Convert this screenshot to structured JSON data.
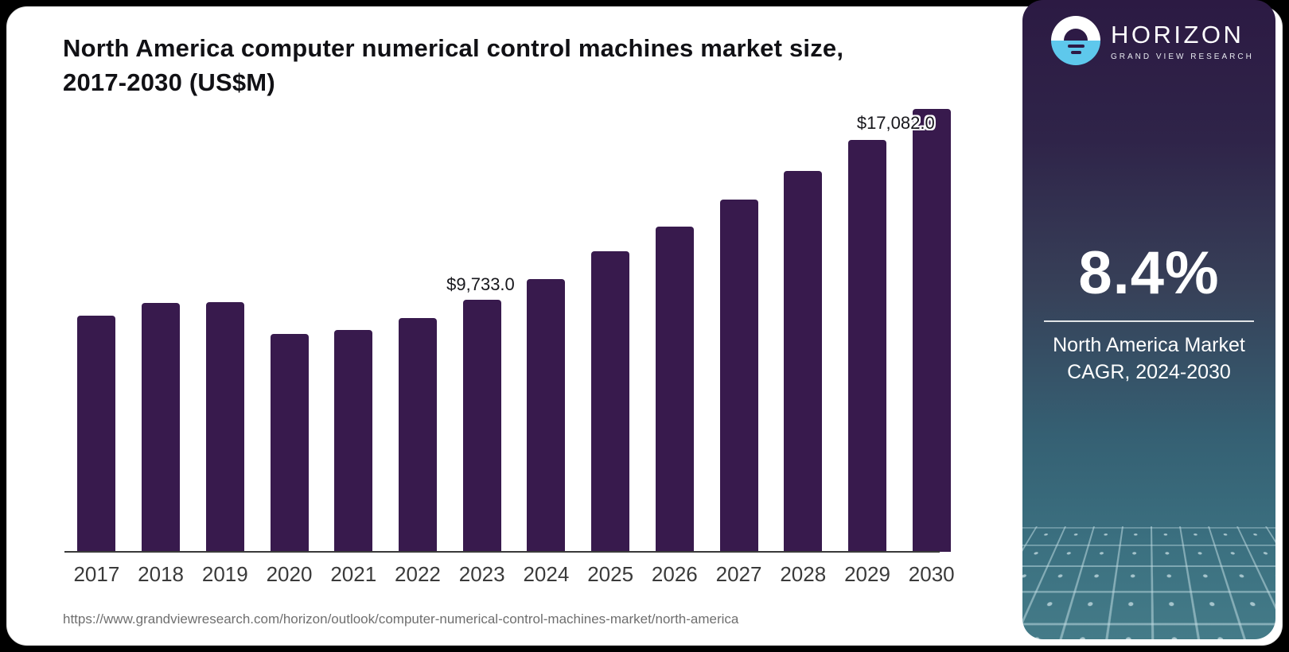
{
  "page": {
    "background_color": "#000000",
    "card_background": "#ffffff"
  },
  "chart_data": {
    "type": "bar",
    "title": "North America computer numerical control machines market size, 2017-2030 (US$M)",
    "categories": [
      "2017",
      "2018",
      "2019",
      "2020",
      "2021",
      "2022",
      "2023",
      "2024",
      "2025",
      "2026",
      "2027",
      "2028",
      "2029",
      "2030"
    ],
    "values": [
      9110,
      9600,
      9630,
      8400,
      8550,
      9020,
      9733,
      10529,
      11580,
      12540,
      13590,
      14700,
      15900,
      17082
    ],
    "unit": "US$M",
    "xlabel": "",
    "ylabel": "",
    "ylim": [
      0,
      17082
    ],
    "grid": false,
    "legend": false,
    "bar_color": "#381a4d",
    "axis_line_color": "#3a3a3a",
    "data_labels": [
      {
        "category": "2023",
        "text": "$9,733.0",
        "position": "above"
      },
      {
        "category": "2030",
        "text": "$17,082.0",
        "position": "overlap"
      }
    ]
  },
  "source": {
    "url": "https://www.grandviewresearch.com/horizon/outlook/computer-numerical-control-machines-market/north-america"
  },
  "sidebar": {
    "logo": {
      "brand": "HORIZON",
      "sub_brand": "GRAND VIEW RESEARCH",
      "icon": "horizon-sunrise-icon",
      "icon_top_color": "#ffffff",
      "icon_bottom_color": "#5ec8ec",
      "icon_glyph_color": "#2d1a45"
    },
    "stat": {
      "value": "8.4%",
      "label": "North America Market CAGR, 2024-2030"
    },
    "gradient_top": "#2c1a43",
    "gradient_bottom": "#447b88"
  }
}
